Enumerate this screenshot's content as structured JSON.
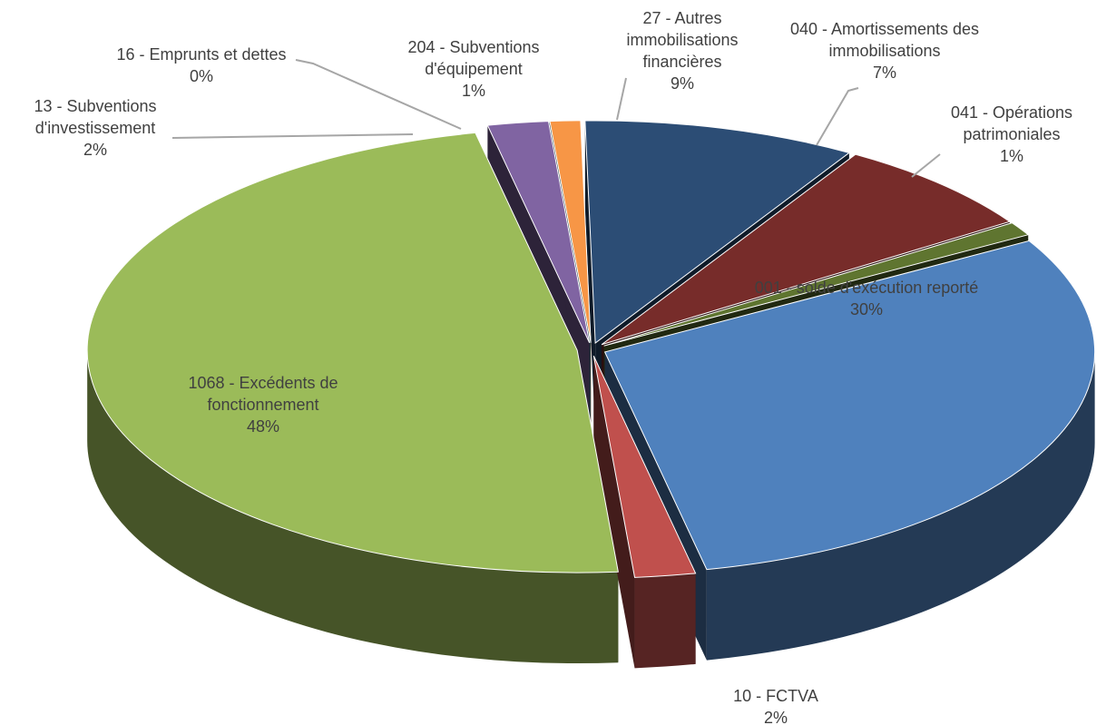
{
  "chart_data": {
    "type": "pie3d",
    "categories": [
      "001 - solde d'exécution reporté",
      "10 - FCTVA",
      "1068 - Excédents de fonctionnement",
      "13 - Subventions d'investissement",
      "16 - Emprunts et dettes",
      "204 - Subventions d'équipement",
      "27 - Autres immobilisations financières",
      "040 - Amortissements des immobilisations",
      "041 - Opérations patrimoniales"
    ],
    "values": [
      30,
      2,
      48,
      2,
      0,
      1,
      9,
      7,
      1
    ],
    "value_labels": [
      "30%",
      "2%",
      "48%",
      "2%",
      "0%",
      "1%",
      "9%",
      "7%",
      "1%"
    ],
    "colors": [
      "#4f81bd",
      "#c0504d",
      "#9bbb59",
      "#8064a2",
      "#4bacc6",
      "#f79646",
      "#2c4d75",
      "#772c2a",
      "#5f7530"
    ]
  }
}
